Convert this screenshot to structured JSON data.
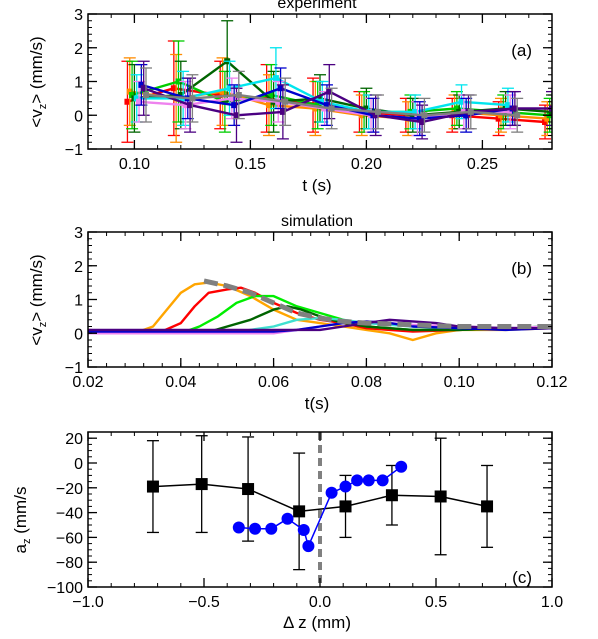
{
  "chart_data": [
    {
      "type": "line",
      "panel_tag": "(a)",
      "title": "experiment",
      "xlabel": "t (s)",
      "ylabel_main": "<v",
      "ylabel_sub": "z",
      "ylabel_rest": "> (mm/s)",
      "xlim": [
        0.08,
        0.28
      ],
      "ylim": [
        -1,
        3
      ],
      "xticks": [
        0.1,
        0.15,
        0.2,
        0.25
      ],
      "xtick_labels": [
        "0.10",
        "0.15",
        "0.20",
        "0.25"
      ],
      "yticks": [
        -1,
        0,
        1,
        2,
        3
      ],
      "ytick_labels": [
        "−1",
        "0",
        "1",
        "2",
        "3"
      ],
      "error_bars": true,
      "series": [
        {
          "color": "#ff0000",
          "x": [
            0.097,
            0.117,
            0.137,
            0.157,
            0.177,
            0.197,
            0.217,
            0.237,
            0.257,
            0.277
          ],
          "y": [
            0.4,
            0.8,
            0.6,
            0.5,
            0.3,
            0.1,
            0.0,
            0.0,
            -0.1,
            -0.2
          ],
          "err": [
            1.2,
            1.4,
            1.0,
            1.0,
            0.8,
            0.6,
            0.5,
            0.5,
            0.5,
            0.5
          ]
        },
        {
          "color": "#ff8c00",
          "x": [
            0.098,
            0.118,
            0.138,
            0.158,
            0.178,
            0.198,
            0.218,
            0.238,
            0.258,
            0.278
          ],
          "y": [
            0.7,
            0.5,
            0.7,
            0.3,
            0.2,
            0.0,
            -0.1,
            0.1,
            0.0,
            -0.1
          ],
          "err": [
            1.0,
            1.3,
            1.0,
            0.9,
            0.8,
            0.6,
            0.5,
            0.5,
            0.5,
            0.5
          ]
        },
        {
          "color": "#00cc00",
          "x": [
            0.099,
            0.119,
            0.139,
            0.159,
            0.179,
            0.199,
            0.219,
            0.239,
            0.259,
            0.279
          ],
          "y": [
            0.6,
            1.0,
            0.4,
            0.6,
            0.3,
            0.1,
            0.1,
            0.2,
            0.1,
            0.0
          ],
          "err": [
            1.0,
            1.2,
            0.9,
            0.9,
            0.7,
            0.6,
            0.5,
            0.5,
            0.5,
            0.5
          ]
        },
        {
          "color": "#006400",
          "x": [
            0.1,
            0.12,
            0.14,
            0.16,
            0.18,
            0.2,
            0.22,
            0.24,
            0.26,
            0.28
          ],
          "y": [
            0.5,
            0.6,
            1.6,
            0.4,
            0.5,
            0.2,
            0.0,
            0.1,
            0.2,
            0.1
          ],
          "err": [
            1.0,
            1.0,
            1.2,
            0.9,
            0.7,
            0.6,
            0.5,
            0.5,
            0.5,
            0.5
          ]
        },
        {
          "color": "#00e5ee",
          "x": [
            0.101,
            0.121,
            0.141,
            0.161,
            0.181,
            0.201,
            0.221,
            0.241,
            0.261
          ],
          "y": [
            0.5,
            0.5,
            0.8,
            1.1,
            0.4,
            0.1,
            0.1,
            0.4,
            0.3
          ],
          "err": [
            0.7,
            0.8,
            0.8,
            0.9,
            0.6,
            0.5,
            0.5,
            0.5,
            0.5
          ]
        },
        {
          "color": "#ee82ee",
          "x": [
            0.102,
            0.122,
            0.142,
            0.162,
            0.182,
            0.202,
            0.222,
            0.242,
            0.262
          ],
          "y": [
            0.4,
            0.3,
            0.5,
            0.4,
            0.2,
            0.0,
            -0.1,
            0.1,
            0.1
          ],
          "err": [
            0.6,
            0.7,
            0.6,
            0.6,
            0.5,
            0.5,
            0.5,
            0.5,
            0.5
          ]
        },
        {
          "color": "#0000cd",
          "x": [
            0.103,
            0.123,
            0.143,
            0.163,
            0.183,
            0.203,
            0.223,
            0.243,
            0.263
          ],
          "y": [
            0.9,
            0.5,
            0.3,
            0.8,
            0.3,
            0.0,
            -0.1,
            0.0,
            0.2
          ],
          "err": [
            0.6,
            0.6,
            0.6,
            0.6,
            0.6,
            0.5,
            0.5,
            0.5,
            0.5
          ]
        },
        {
          "color": "#4b0082",
          "x": [
            0.104,
            0.124,
            0.144,
            0.164,
            0.184,
            0.204,
            0.224,
            0.244,
            0.264,
            0.28
          ],
          "y": [
            0.8,
            0.3,
            0.0,
            0.1,
            0.7,
            0.0,
            -0.2,
            0.1,
            0.2,
            0.2
          ],
          "err": [
            0.8,
            0.8,
            0.8,
            0.8,
            0.8,
            0.6,
            0.5,
            0.5,
            0.5,
            0.5
          ]
        },
        {
          "color": "#7f7f7f",
          "x": [
            0.105,
            0.125,
            0.145,
            0.165,
            0.185,
            0.205,
            0.225,
            0.245,
            0.265
          ],
          "y": [
            0.6,
            0.5,
            0.6,
            0.4,
            0.2,
            0.1,
            0.0,
            0.1,
            0.0
          ],
          "err": [
            0.8,
            0.7,
            0.7,
            0.7,
            0.6,
            0.5,
            0.5,
            0.5,
            0.5
          ]
        }
      ]
    },
    {
      "type": "line",
      "panel_tag": "(b)",
      "title": "simulation",
      "xlabel": "t(s)",
      "ylabel_main": "<v",
      "ylabel_sub": "z",
      "ylabel_rest": "> (mm/s)",
      "xlim": [
        0.02,
        0.12
      ],
      "ylim": [
        -1,
        3
      ],
      "xticks": [
        0.02,
        0.04,
        0.06,
        0.08,
        0.1,
        0.12
      ],
      "xtick_labels": [
        "0.02",
        "0.04",
        "0.06",
        "0.08",
        "0.10",
        "0.12"
      ],
      "yticks": [
        -1,
        0,
        1,
        2,
        3
      ],
      "ytick_labels": [
        "−1",
        "0",
        "1",
        "2",
        "3"
      ],
      "series": [
        {
          "color": "#ffa500",
          "x": [
            0.02,
            0.03,
            0.034,
            0.037,
            0.04,
            0.043,
            0.046,
            0.05,
            0.055,
            0.06,
            0.065,
            0.07,
            0.075,
            0.08,
            0.085,
            0.09,
            0.095,
            0.1,
            0.11,
            0.12
          ],
          "y": [
            0.1,
            0.0,
            0.2,
            0.7,
            1.2,
            1.45,
            1.5,
            1.4,
            1.1,
            0.7,
            0.4,
            0.3,
            0.2,
            0.1,
            0.0,
            -0.2,
            0.0,
            0.1,
            0.1,
            0.15
          ]
        },
        {
          "color": "#ff0000",
          "x": [
            0.02,
            0.035,
            0.04,
            0.043,
            0.046,
            0.05,
            0.053,
            0.056,
            0.06,
            0.065,
            0.07,
            0.075,
            0.08,
            0.09,
            0.1,
            0.11,
            0.12
          ],
          "y": [
            0.05,
            0.0,
            0.3,
            0.8,
            1.2,
            1.3,
            1.35,
            1.2,
            0.9,
            0.6,
            0.4,
            0.3,
            0.15,
            0.05,
            0.1,
            0.15,
            0.15
          ]
        },
        {
          "color": "#00ee00",
          "x": [
            0.02,
            0.04,
            0.044,
            0.048,
            0.052,
            0.056,
            0.06,
            0.065,
            0.07,
            0.075,
            0.08,
            0.09,
            0.1,
            0.11,
            0.12
          ],
          "y": [
            0.0,
            0.0,
            0.2,
            0.5,
            0.9,
            1.1,
            1.1,
            0.8,
            0.6,
            0.4,
            0.2,
            0.1,
            0.1,
            0.15,
            0.2
          ]
        },
        {
          "color": "#006400",
          "x": [
            0.02,
            0.045,
            0.05,
            0.055,
            0.06,
            0.063,
            0.066,
            0.07,
            0.075,
            0.08,
            0.09,
            0.1,
            0.11,
            0.12
          ],
          "y": [
            0.0,
            0.0,
            0.2,
            0.4,
            0.7,
            0.8,
            0.7,
            0.5,
            0.3,
            0.2,
            0.1,
            0.1,
            0.15,
            0.2
          ]
        },
        {
          "color": "#40e0d0",
          "x": [
            0.02,
            0.05,
            0.055,
            0.06,
            0.065,
            0.07,
            0.075,
            0.08,
            0.09,
            0.1,
            0.11,
            0.12
          ],
          "y": [
            0.0,
            0.0,
            0.1,
            0.2,
            0.4,
            0.45,
            0.4,
            0.3,
            0.2,
            0.15,
            0.15,
            0.2
          ]
        },
        {
          "color": "#ee82ee",
          "x": [
            0.02,
            0.06,
            0.065,
            0.07,
            0.075,
            0.08,
            0.085,
            0.09,
            0.1,
            0.11,
            0.12
          ],
          "y": [
            0.0,
            0.0,
            0.1,
            0.2,
            0.3,
            0.35,
            0.3,
            0.25,
            0.2,
            0.15,
            0.2
          ]
        },
        {
          "color": "#0000cd",
          "x": [
            0.02,
            0.06,
            0.065,
            0.07,
            0.075,
            0.08,
            0.085,
            0.09,
            0.1,
            0.11,
            0.12
          ],
          "y": [
            0.05,
            0.05,
            0.1,
            0.2,
            0.3,
            0.35,
            0.3,
            0.2,
            0.15,
            0.1,
            0.15
          ]
        },
        {
          "color": "#4b0082",
          "x": [
            0.02,
            0.07,
            0.075,
            0.08,
            0.085,
            0.09,
            0.095,
            0.1,
            0.11,
            0.12
          ],
          "y": [
            0.1,
            0.1,
            0.2,
            0.3,
            0.4,
            0.35,
            0.3,
            0.2,
            0.15,
            0.15
          ]
        },
        {
          "color": "#808080",
          "dashed": true,
          "x": [
            0.045,
            0.05,
            0.055,
            0.06,
            0.065,
            0.07,
            0.075,
            0.08,
            0.09,
            0.1,
            0.11,
            0.12
          ],
          "y": [
            1.55,
            1.4,
            1.2,
            0.9,
            0.6,
            0.45,
            0.35,
            0.3,
            0.25,
            0.2,
            0.2,
            0.2
          ]
        }
      ]
    },
    {
      "type": "scatter",
      "panel_tag": "(c)",
      "xlabel": "Δ z (mm)",
      "ylabel_main": "a",
      "ylabel_sub": "z",
      "ylabel_rest": " (mm/s",
      "xlim": [
        -1.0,
        1.0
      ],
      "ylim": [
        -100,
        25
      ],
      "xticks": [
        -1.0,
        -0.5,
        0.0,
        0.5,
        1.0
      ],
      "xtick_labels": [
        "−1.0",
        "−0.5",
        "0.0",
        "0.5",
        "1.0"
      ],
      "yticks": [
        -100,
        -80,
        -60,
        -40,
        -20,
        0,
        20
      ],
      "ytick_labels": [
        "−100",
        "−80",
        "−60",
        "−40",
        "−20",
        "0",
        "20"
      ],
      "vline": {
        "x": 0.0,
        "color": "#808080",
        "dashed": true
      },
      "series": [
        {
          "color": "#000000",
          "marker": "square",
          "x": [
            -0.72,
            -0.51,
            -0.31,
            -0.09,
            0.11,
            0.31,
            0.52,
            0.72
          ],
          "y": [
            -19,
            -17,
            -21,
            -39,
            -35,
            -26,
            -27,
            -35
          ],
          "err": [
            37,
            39,
            42,
            47,
            25,
            24,
            47,
            33
          ]
        },
        {
          "color": "#0000ff",
          "marker": "circle",
          "x": [
            -0.35,
            -0.28,
            -0.21,
            -0.14,
            -0.07,
            -0.05,
            0.05,
            0.11,
            0.16,
            0.21,
            0.27,
            0.35
          ],
          "y": [
            -52,
            -53,
            -53,
            -45,
            -54,
            -67,
            -24,
            -19,
            -14,
            -14,
            -14,
            -3
          ]
        }
      ]
    }
  ]
}
